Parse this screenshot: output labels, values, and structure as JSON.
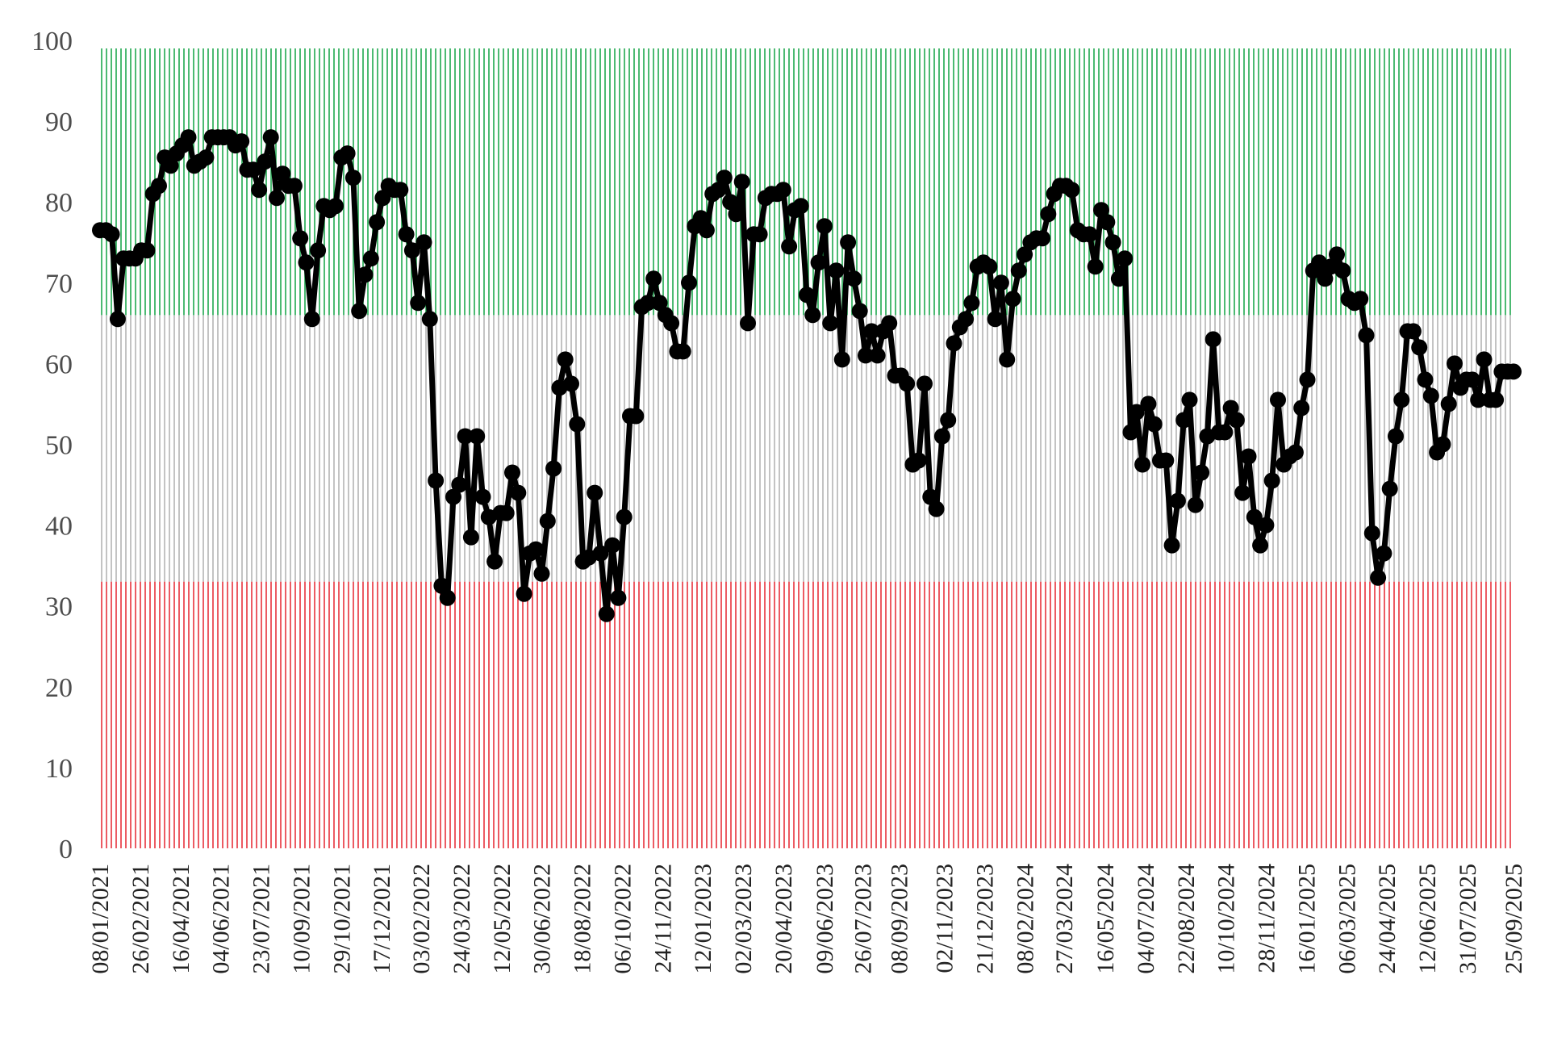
{
  "chart_data": {
    "type": "line",
    "title": "",
    "xlabel": "",
    "ylabel": "",
    "ylim": [
      0,
      100
    ],
    "yticks": [
      0,
      10,
      20,
      30,
      40,
      50,
      60,
      70,
      80,
      90,
      100
    ],
    "x_start": "08/01/2021",
    "x_end": "25/09/2025",
    "x_tick_labels": [
      "08/01/2021",
      "26/02/2021",
      "16/04/2021",
      "04/06/2021",
      "23/07/2021",
      "10/09/2021",
      "29/10/2021",
      "17/12/2021",
      "03/02/2022",
      "24/03/2022",
      "12/05/2022",
      "30/06/2022",
      "18/08/2022",
      "06/10/2022",
      "24/11/2022",
      "12/01/2023",
      "02/03/2023",
      "20/04/2023",
      "09/06/2023",
      "26/07/2023",
      "08/09/2023",
      "02/11/2023",
      "21/12/2023",
      "08/02/2024",
      "27/03/2024",
      "16/05/2024",
      "04/07/2024",
      "22/08/2024",
      "10/10/2024",
      "28/11/2024",
      "16/01/2025",
      "06/03/2025",
      "24/04/2025",
      "12/06/2025",
      "31/07/2025",
      "25/09/2025"
    ],
    "bands": [
      {
        "from": 0,
        "to": 33,
        "color": "#e8323c"
      },
      {
        "from": 33,
        "to": 66,
        "color": "#b4b4b4"
      },
      {
        "from": 66,
        "to": 99,
        "color": "#1fa84f"
      }
    ],
    "line_color": "#000000",
    "grid": false,
    "legend": "none",
    "series": [
      {
        "values": [
          76.5,
          76.5,
          76,
          65.5,
          73,
          73,
          73,
          74,
          74,
          81,
          82,
          85.5,
          84.5,
          86,
          87,
          88,
          84.5,
          85,
          85.5,
          88,
          88,
          88,
          88,
          87,
          87.5,
          84,
          84,
          81.5,
          85,
          88,
          80.5,
          83.5,
          82,
          82,
          75.5,
          72.5,
          65.5,
          74,
          79.5,
          79,
          79.5,
          85.5,
          86,
          83,
          66.5,
          71,
          73,
          77.5,
          80.5,
          82,
          81.5,
          81.5,
          76,
          74,
          67.5,
          75,
          65.5,
          45.5,
          32.5,
          31,
          43.5,
          45,
          51,
          38.5,
          51,
          43.5,
          41,
          35.5,
          41.5,
          41.5,
          46.5,
          44,
          31.5,
          36.5,
          37,
          34,
          40.5,
          47,
          57,
          60.5,
          57.5,
          52.5,
          35.5,
          36,
          44,
          36.5,
          29,
          37.5,
          31,
          41,
          53.5,
          53.5,
          67,
          67.5,
          70.5,
          67.5,
          66,
          65,
          61.5,
          61.5,
          70,
          77,
          78,
          76.5,
          81,
          81.5,
          83,
          80,
          78.5,
          82.5,
          65,
          76,
          76,
          80.5,
          81,
          81,
          81.5,
          74.5,
          79,
          79.5,
          68.5,
          66,
          72.5,
          77,
          65,
          71.5,
          60.5,
          75,
          70.5,
          66.5,
          61,
          64,
          61,
          64,
          65,
          58.5,
          58.5,
          57.5,
          47.5,
          48,
          57.5,
          43.5,
          42,
          51,
          53,
          62.5,
          64.5,
          65.5,
          67.5,
          72,
          72.5,
          72,
          65.5,
          70,
          60.5,
          68,
          71.5,
          73.5,
          75,
          75.5,
          75.5,
          78.5,
          81,
          82,
          82,
          81.5,
          76.5,
          76,
          76,
          72,
          79,
          77.5,
          75,
          70.5,
          73,
          51.5,
          54,
          47.5,
          55,
          52.5,
          48,
          48,
          37.5,
          43,
          53,
          55.5,
          42.5,
          46.5,
          51,
          63,
          51.5,
          51.5,
          54.5,
          53,
          44,
          48.5,
          41,
          37.5,
          40,
          45.5,
          55.5,
          47.5,
          48.5,
          49,
          54.5,
          58,
          71.5,
          72.5,
          70.5,
          72,
          73.5,
          71.5,
          68,
          67.5,
          68,
          63.5,
          39,
          33.5,
          36.5,
          44.5,
          51,
          55.5,
          64,
          64,
          62,
          58,
          56,
          49,
          50,
          55,
          60,
          57,
          58,
          58,
          55.5,
          60.5,
          55.5,
          55.5,
          59,
          59,
          59
        ]
      }
    ]
  }
}
